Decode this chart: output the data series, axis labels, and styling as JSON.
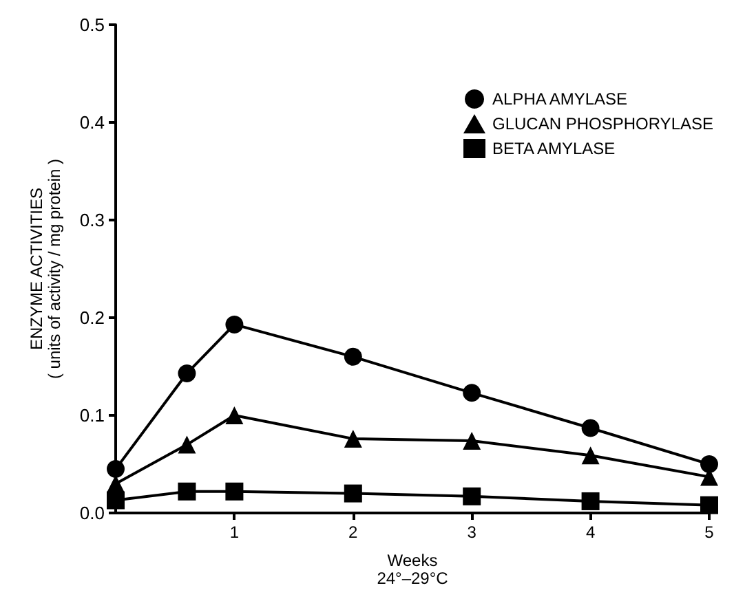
{
  "chart_data": {
    "type": "line",
    "xlabel": "Weeks\n24°–29°C",
    "ylabel": "ENZYME ACTIVITIES\n( units of activity / mg protein )",
    "x": [
      0,
      0.6,
      1,
      2,
      3,
      4,
      5
    ],
    "xlim": [
      0,
      5
    ],
    "xticks": [
      1,
      2,
      3,
      4,
      5
    ],
    "ylim": [
      0,
      0.5
    ],
    "yticks": [
      {
        "value": 0,
        "label": "0.0"
      },
      0.1,
      0.2,
      0.3,
      0.4,
      0.5
    ],
    "grid": false,
    "legend": "top right",
    "line_style": "solid",
    "series": [
      {
        "name": "ALPHA AMYLASE",
        "color": "#000000",
        "marker": "circle",
        "values": [
          0.045,
          0.143,
          0.193,
          0.16,
          0.123,
          0.087,
          0.05
        ]
      },
      {
        "name": "GLUCAN PHOSPHORYLASE",
        "color": "#000000",
        "marker": "triangle",
        "values": [
          0.03,
          0.07,
          0.1,
          0.076,
          0.074,
          0.059,
          0.037
        ]
      },
      {
        "name": "BETA AMYLASE",
        "color": "#000000",
        "marker": "square",
        "values": [
          0.013,
          0.022,
          0.022,
          0.02,
          0.017,
          0.012,
          0.008
        ]
      }
    ]
  }
}
